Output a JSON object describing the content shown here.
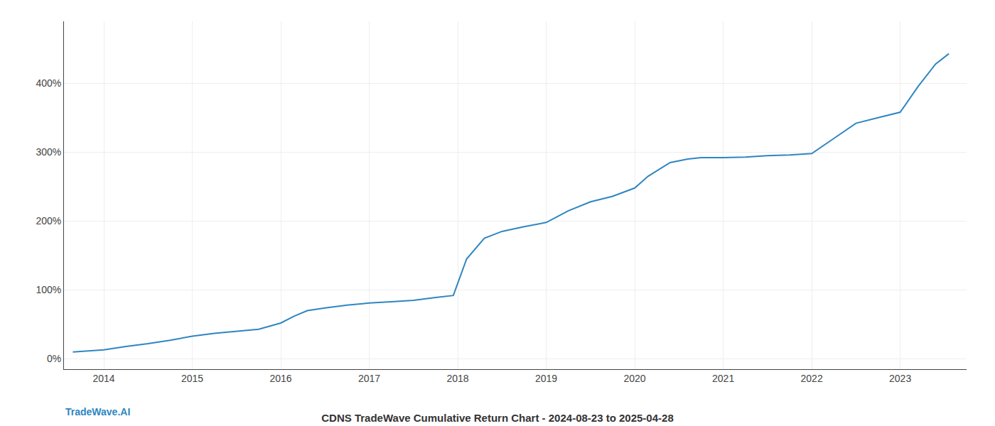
{
  "chart_data": {
    "type": "line",
    "title": "CDNS TradeWave Cumulative Return Chart - 2024-08-23 to 2025-04-28",
    "x": [
      2013.65,
      2014.0,
      2014.25,
      2014.5,
      2014.75,
      2015.0,
      2015.25,
      2015.5,
      2015.75,
      2016.0,
      2016.15,
      2016.3,
      2016.5,
      2016.75,
      2017.0,
      2017.25,
      2017.5,
      2017.75,
      2017.95,
      2018.1,
      2018.3,
      2018.5,
      2018.75,
      2019.0,
      2019.25,
      2019.5,
      2019.75,
      2020.0,
      2020.15,
      2020.4,
      2020.6,
      2020.75,
      2021.0,
      2021.25,
      2021.5,
      2021.75,
      2022.0,
      2022.25,
      2022.5,
      2022.75,
      2023.0,
      2023.2,
      2023.4,
      2023.55
    ],
    "values": [
      10,
      13,
      18,
      22,
      27,
      33,
      37,
      40,
      43,
      52,
      62,
      70,
      74,
      78,
      81,
      83,
      85,
      89,
      92,
      145,
      175,
      185,
      192,
      198,
      215,
      228,
      236,
      248,
      265,
      285,
      290,
      292,
      292,
      293,
      295,
      296,
      298,
      320,
      342,
      350,
      358,
      395,
      428,
      443
    ],
    "color": "#2e86c1",
    "xlim": [
      2013.55,
      2023.75
    ],
    "xticks": [
      2014,
      2015,
      2016,
      2017,
      2018,
      2019,
      2020,
      2021,
      2022,
      2023
    ],
    "ylim": [
      -15,
      490
    ],
    "yticks": [
      {
        "value": 0,
        "label": "0%"
      },
      {
        "value": 100,
        "label": "100%"
      },
      {
        "value": 200,
        "label": "200%"
      },
      {
        "value": 300,
        "label": "300%"
      },
      {
        "value": 400,
        "label": "400%"
      }
    ],
    "grid": true,
    "annotations": [
      {
        "text": "TradeWave.AI"
      }
    ]
  }
}
